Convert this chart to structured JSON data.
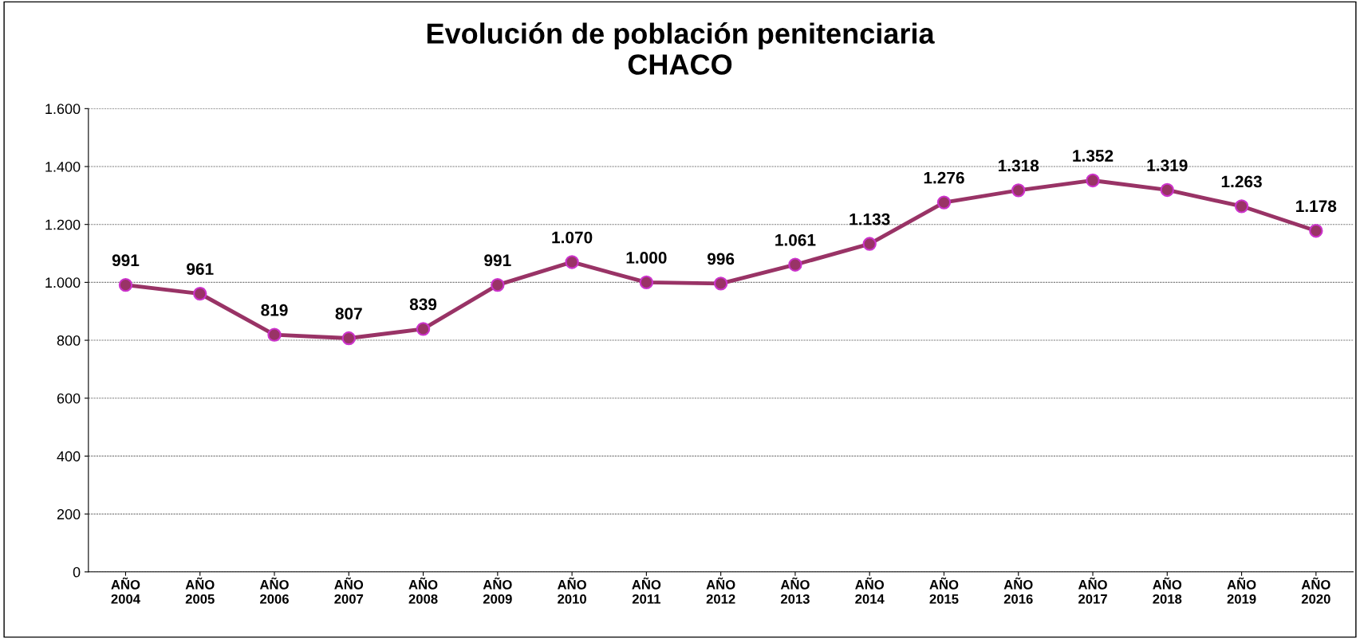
{
  "chart_data": {
    "type": "line",
    "title": "Evolución de población penitenciaria\nCHACO",
    "categories": [
      "AÑO\n2004",
      "AÑO\n2005",
      "AÑO\n2006",
      "AÑO\n2007",
      "AÑO\n2008",
      "AÑO\n2009",
      "AÑO\n2010",
      "AÑO\n2011",
      "AÑO\n2012",
      "AÑO\n2013",
      "AÑO\n2014",
      "AÑO\n2015",
      "AÑO\n2016",
      "AÑO\n2017",
      "AÑO\n2018",
      "AÑO\n2019",
      "AÑO\n2020"
    ],
    "series": [
      {
        "color": "#993366",
        "values": [
          991,
          961,
          819,
          807,
          839,
          991,
          1070,
          1000,
          996,
          1061,
          1133,
          1276,
          1318,
          1352,
          1319,
          1263,
          1178
        ],
        "value_labels": [
          "991",
          "961",
          "819",
          "807",
          "839",
          "991",
          "1.070",
          "1.000",
          "996",
          "1.061",
          "1.133",
          "1.276",
          "1.318",
          "1.352",
          "1.319",
          "1.263",
          "1.178"
        ]
      }
    ],
    "ylim": [
      0,
      1600
    ],
    "yticks": [
      0,
      {
        "value": 200,
        "label": "200"
      },
      {
        "value": 400,
        "label": "400"
      },
      {
        "value": 600,
        "label": "600"
      },
      {
        "value": 800,
        "label": "800"
      },
      {
        "value": 1000,
        "label": "1.000"
      },
      {
        "value": 1200,
        "label": "1.200"
      },
      {
        "value": 1400,
        "label": "1.400"
      },
      {
        "value": 1600,
        "label": "1.600"
      }
    ],
    "grid": "y",
    "marker": "circle",
    "line_style": "solid",
    "legend": false
  }
}
